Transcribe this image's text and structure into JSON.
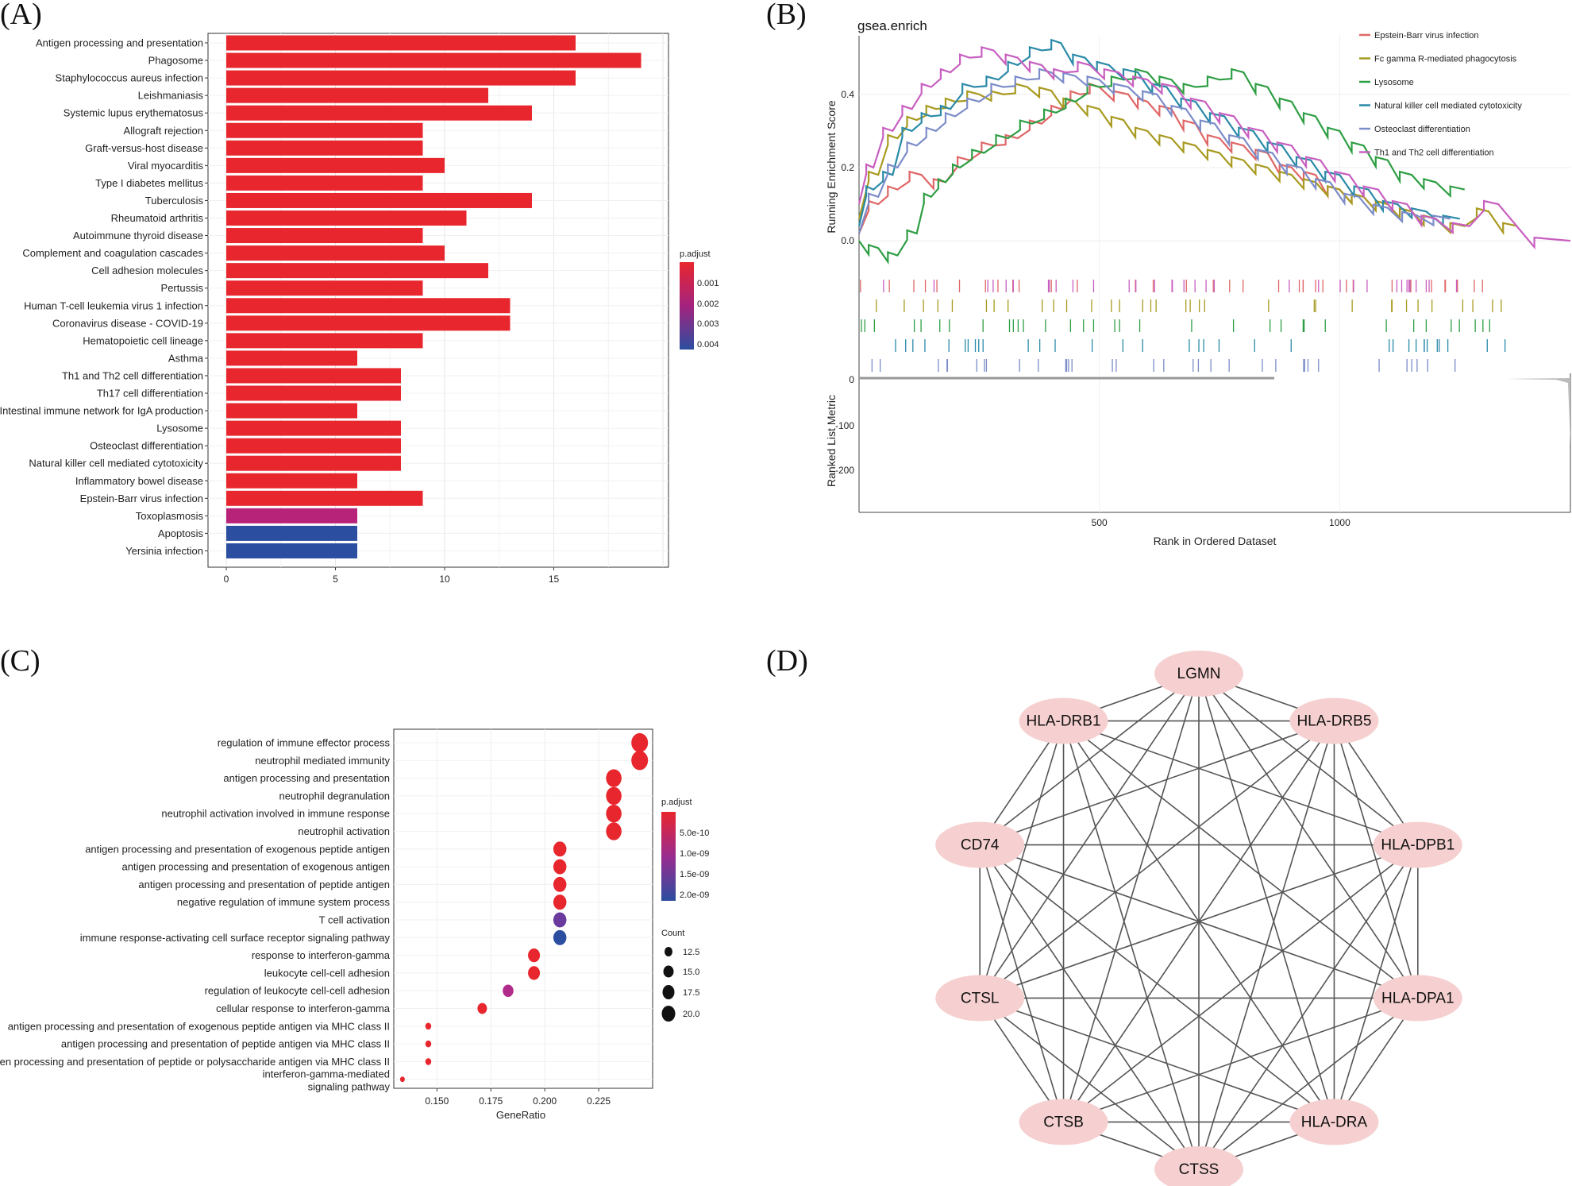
{
  "panels": {
    "a": "(A)",
    "b": "(B)",
    "c": "(C)",
    "d": "(D)"
  },
  "chart_data": [
    {
      "type": "bar",
      "orientation": "horizontal",
      "categories": [
        "Antigen processing and presentation",
        "Phagosome",
        "Staphylococcus aureus infection",
        "Leishmaniasis",
        "Systemic lupus erythematosus",
        "Allograft rejection",
        "Graft-versus-host disease",
        "Viral myocarditis",
        "Type I diabetes mellitus",
        "Tuberculosis",
        "Rheumatoid arthritis",
        "Autoimmune thyroid disease",
        "Complement and coagulation cascades",
        "Cell adhesion molecules",
        "Pertussis",
        "Human T-cell leukemia virus 1 infection",
        "Coronavirus disease - COVID-19",
        "Hematopoietic cell lineage",
        "Asthma",
        "Th1 and Th2 cell differentiation",
        "Th17 cell differentiation",
        "Intestinal immune network for IgA production",
        "Lysosome",
        "Osteoclast differentiation",
        "Natural killer cell mediated cytotoxicity",
        "Inflammatory bowel disease",
        "Epstein-Barr virus infection",
        "Toxoplasmosis",
        "Apoptosis",
        "Yersinia infection"
      ],
      "values": [
        16,
        19,
        16,
        12,
        14,
        9,
        9,
        10,
        9,
        14,
        11,
        9,
        10,
        12,
        9,
        13,
        13,
        9,
        6,
        8,
        8,
        6,
        8,
        8,
        8,
        6,
        9,
        6,
        6,
        6
      ],
      "colors": [
        "#e8262d",
        "#e8262d",
        "#e8262d",
        "#e8262d",
        "#e8262d",
        "#e8262d",
        "#e8262d",
        "#e8262d",
        "#e8262d",
        "#e8262d",
        "#e8262d",
        "#e8262d",
        "#e8262d",
        "#e8262d",
        "#e8262d",
        "#e8262d",
        "#e8262d",
        "#e8262d",
        "#e8262d",
        "#e8262d",
        "#e8262d",
        "#e8262d",
        "#e8262d",
        "#e8262d",
        "#e8262d",
        "#e8262d",
        "#e8262d",
        "#b8237a",
        "#2b4ea0",
        "#2b4ea0"
      ],
      "xlim": [
        0,
        20
      ],
      "xticks": [
        "0",
        "5",
        "10",
        "15"
      ],
      "legend": {
        "title": "p.adjust",
        "labels": [
          "0.001",
          "0.002",
          "0.003",
          "0.004"
        ]
      }
    },
    {
      "type": "line",
      "title": "gsea.enrich",
      "ylabel": "Running Enrichment Score",
      "ylabel2": "Ranked List Metric",
      "xlabel": "Rank in Ordered Dataset",
      "xticks": [
        "500",
        "1000"
      ],
      "yticks": [
        "0.0",
        "0.2",
        "0.4"
      ],
      "yticks2": [
        "0",
        "-100",
        "-200"
      ],
      "xlim": [
        0,
        1480
      ],
      "ylim": [
        -0.08,
        0.56
      ],
      "series": [
        {
          "name": "Epstein-Barr virus infection",
          "color": "#e06666",
          "points": [
            [
              0,
              0.02
            ],
            [
              40,
              0.1
            ],
            [
              80,
              0.14
            ],
            [
              130,
              0.18
            ],
            [
              180,
              0.16
            ],
            [
              230,
              0.22
            ],
            [
              280,
              0.26
            ],
            [
              330,
              0.28
            ],
            [
              380,
              0.32
            ],
            [
              420,
              0.36
            ],
            [
              460,
              0.4
            ],
            [
              500,
              0.42
            ],
            [
              560,
              0.4
            ],
            [
              600,
              0.38
            ],
            [
              650,
              0.36
            ],
            [
              700,
              0.32
            ],
            [
              750,
              0.28
            ],
            [
              800,
              0.26
            ],
            [
              850,
              0.24
            ],
            [
              900,
              0.2
            ],
            [
              950,
              0.18
            ],
            [
              1000,
              0.14
            ],
            [
              1050,
              0.12
            ],
            [
              1100,
              0.1
            ],
            [
              1150,
              0.08
            ],
            [
              1200,
              0.06
            ],
            [
              1270,
              0.04
            ]
          ]
        },
        {
          "name": "Fc gamma R-mediated phagocytosis",
          "color": "#a89a20",
          "points": [
            [
              0,
              0.06
            ],
            [
              40,
              0.18
            ],
            [
              80,
              0.28
            ],
            [
              120,
              0.33
            ],
            [
              160,
              0.36
            ],
            [
              200,
              0.38
            ],
            [
              250,
              0.4
            ],
            [
              300,
              0.4
            ],
            [
              350,
              0.42
            ],
            [
              400,
              0.41
            ],
            [
              450,
              0.38
            ],
            [
              500,
              0.36
            ],
            [
              550,
              0.33
            ],
            [
              600,
              0.3
            ],
            [
              650,
              0.28
            ],
            [
              700,
              0.26
            ],
            [
              750,
              0.24
            ],
            [
              800,
              0.22
            ],
            [
              850,
              0.2
            ],
            [
              900,
              0.18
            ],
            [
              950,
              0.16
            ],
            [
              1000,
              0.14
            ],
            [
              1050,
              0.12
            ],
            [
              1100,
              0.1
            ],
            [
              1150,
              0.08
            ],
            [
              1200,
              0.06
            ],
            [
              1260,
              0.04
            ],
            [
              1310,
              0.08
            ],
            [
              1370,
              0.04
            ]
          ]
        },
        {
          "name": "Lysosome",
          "color": "#2e9e44",
          "points": [
            [
              0,
              0.0
            ],
            [
              40,
              -0.02
            ],
            [
              80,
              -0.04
            ],
            [
              120,
              0.02
            ],
            [
              150,
              0.12
            ],
            [
              180,
              0.16
            ],
            [
              210,
              0.2
            ],
            [
              260,
              0.24
            ],
            [
              310,
              0.28
            ],
            [
              360,
              0.32
            ],
            [
              410,
              0.35
            ],
            [
              450,
              0.38
            ],
            [
              500,
              0.42
            ],
            [
              550,
              0.44
            ],
            [
              600,
              0.46
            ],
            [
              650,
              0.44
            ],
            [
              700,
              0.42
            ],
            [
              750,
              0.44
            ],
            [
              800,
              0.46
            ],
            [
              850,
              0.42
            ],
            [
              900,
              0.38
            ],
            [
              950,
              0.34
            ],
            [
              1000,
              0.3
            ],
            [
              1050,
              0.26
            ],
            [
              1100,
              0.22
            ],
            [
              1150,
              0.18
            ],
            [
              1200,
              0.16
            ],
            [
              1260,
              0.14
            ]
          ]
        },
        {
          "name": "Natural killer cell mediated cytotoxicity",
          "color": "#2a8aa8",
          "points": [
            [
              0,
              0.04
            ],
            [
              30,
              0.14
            ],
            [
              70,
              0.18
            ],
            [
              110,
              0.3
            ],
            [
              150,
              0.34
            ],
            [
              190,
              0.36
            ],
            [
              240,
              0.42
            ],
            [
              290,
              0.44
            ],
            [
              330,
              0.48
            ],
            [
              380,
              0.52
            ],
            [
              420,
              0.54
            ],
            [
              470,
              0.5
            ],
            [
              520,
              0.48
            ],
            [
              580,
              0.46
            ],
            [
              640,
              0.42
            ],
            [
              700,
              0.38
            ],
            [
              760,
              0.34
            ],
            [
              820,
              0.3
            ],
            [
              880,
              0.26
            ],
            [
              940,
              0.22
            ],
            [
              1000,
              0.18
            ],
            [
              1060,
              0.14
            ],
            [
              1120,
              0.1
            ],
            [
              1180,
              0.08
            ],
            [
              1250,
              0.06
            ]
          ]
        },
        {
          "name": "Osteoclast differentiation",
          "color": "#7b8cc8",
          "points": [
            [
              0,
              0.02
            ],
            [
              40,
              0.12
            ],
            [
              80,
              0.2
            ],
            [
              120,
              0.26
            ],
            [
              160,
              0.3
            ],
            [
              200,
              0.34
            ],
            [
              250,
              0.38
            ],
            [
              300,
              0.42
            ],
            [
              350,
              0.44
            ],
            [
              400,
              0.46
            ],
            [
              450,
              0.45
            ],
            [
              500,
              0.44
            ],
            [
              560,
              0.42
            ],
            [
              620,
              0.4
            ],
            [
              680,
              0.36
            ],
            [
              740,
              0.32
            ],
            [
              800,
              0.28
            ],
            [
              860,
              0.24
            ],
            [
              920,
              0.2
            ],
            [
              980,
              0.16
            ],
            [
              1040,
              0.12
            ],
            [
              1100,
              0.09
            ],
            [
              1160,
              0.07
            ],
            [
              1230,
              0.06
            ]
          ]
        },
        {
          "name": "Th1 and Th2 cell differentiation",
          "color": "#c85fc0",
          "points": [
            [
              0,
              0.1
            ],
            [
              30,
              0.2
            ],
            [
              70,
              0.3
            ],
            [
              110,
              0.36
            ],
            [
              150,
              0.42
            ],
            [
              190,
              0.46
            ],
            [
              230,
              0.5
            ],
            [
              280,
              0.52
            ],
            [
              330,
              0.5
            ],
            [
              380,
              0.48
            ],
            [
              430,
              0.46
            ],
            [
              480,
              0.48
            ],
            [
              540,
              0.46
            ],
            [
              600,
              0.44
            ],
            [
              660,
              0.42
            ],
            [
              720,
              0.38
            ],
            [
              780,
              0.34
            ],
            [
              840,
              0.3
            ],
            [
              900,
              0.26
            ],
            [
              960,
              0.22
            ],
            [
              1020,
              0.18
            ],
            [
              1080,
              0.14
            ],
            [
              1140,
              0.1
            ],
            [
              1200,
              0.06
            ],
            [
              1270,
              0.04
            ],
            [
              1330,
              0.1
            ],
            [
              1480,
              0.0
            ]
          ]
        }
      ]
    },
    {
      "type": "scatter",
      "xlabel": "GeneRatio",
      "xticks": [
        "0.150",
        "0.175",
        "0.200",
        "0.225"
      ],
      "xlim": [
        0.13,
        0.25
      ],
      "categories": [
        "regulation of immune effector process",
        "neutrophil mediated immunity",
        "antigen processing and presentation",
        "neutrophil degranulation",
        "neutrophil activation involved in immune response",
        "neutrophil activation",
        "antigen processing and presentation of exogenous peptide antigen",
        "antigen processing and presentation of exogenous antigen",
        "antigen processing and presentation of peptide antigen",
        "negative regulation of immune system process",
        "T cell activation",
        "immune response-activating cell surface receptor signaling pathway",
        "response to interferon-gamma",
        "leukocyte cell-cell adhesion",
        "regulation of leukocyte cell-cell adhesion",
        "cellular response to interferon-gamma",
        "antigen processing and presentation of exogenous peptide antigen via MHC class II",
        "antigen processing and presentation of peptide antigen via MHC class II",
        "antigen processing and presentation of peptide or polysaccharide antigen via MHC class II",
        "interferon-gamma-mediated signaling pathway"
      ],
      "x": [
        0.244,
        0.244,
        0.232,
        0.232,
        0.232,
        0.232,
        0.207,
        0.207,
        0.207,
        0.207,
        0.207,
        0.207,
        0.195,
        0.195,
        0.183,
        0.171,
        0.146,
        0.146,
        0.146,
        0.134
      ],
      "counts": [
        21,
        21,
        20,
        20,
        20,
        20,
        18,
        18,
        18,
        18,
        18,
        18,
        17,
        17,
        16,
        15,
        12,
        12,
        12,
        11
      ],
      "colors": [
        "#e8262d",
        "#e8262d",
        "#e8262d",
        "#e8262d",
        "#e8262d",
        "#e8262d",
        "#e8262d",
        "#e8262d",
        "#e8262d",
        "#e8262d",
        "#6a3a9e",
        "#2b4ea0",
        "#e8262d",
        "#e8262d",
        "#b02b8a",
        "#e8262d",
        "#e8262d",
        "#e8262d",
        "#e8262d",
        "#e8262d"
      ],
      "legend_color": {
        "title": "p.adjust",
        "labels": [
          "5.0e-10",
          "1.0e-09",
          "1.5e-09",
          "2.0e-09"
        ]
      },
      "legend_size": {
        "title": "Count",
        "labels": [
          "12.5",
          "15.0",
          "17.5",
          "20.0"
        ]
      }
    }
  ],
  "network": {
    "nodes": [
      "LGMN",
      "HLA-DRB5",
      "HLA-DPB1",
      "HLA-DPA1",
      "HLA-DRA",
      "CTSS",
      "CTSB",
      "CTSL",
      "CD74",
      "HLA-DRB1"
    ],
    "node_color": "#f6d0d0",
    "edge_color": "#555555"
  }
}
